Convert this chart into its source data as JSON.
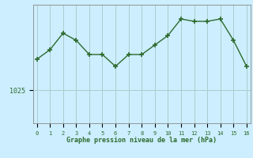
{
  "x": [
    0,
    1,
    2,
    3,
    4,
    5,
    6,
    7,
    8,
    9,
    10,
    11,
    12,
    13,
    14,
    15,
    16
  ],
  "y": [
    1031.5,
    1033.5,
    1037.0,
    1035.5,
    1032.5,
    1032.5,
    1030.0,
    1032.5,
    1032.5,
    1034.5,
    1036.5,
    1040.0,
    1039.5,
    1039.5,
    1040.0,
    1035.5,
    1030.0
  ],
  "line_color": "#2d6a2d",
  "marker_color": "#2d6a2d",
  "bg_color": "#cceeff",
  "grid_color": "#aacccc",
  "text_color": "#2d6a2d",
  "xlabel": "Graphe pression niveau de la mer (hPa)",
  "ytick_labels": [
    "1025"
  ],
  "ytick_values": [
    1025
  ],
  "ymin": 1018,
  "ymax": 1043,
  "xmin": -0.3,
  "xmax": 16.3
}
